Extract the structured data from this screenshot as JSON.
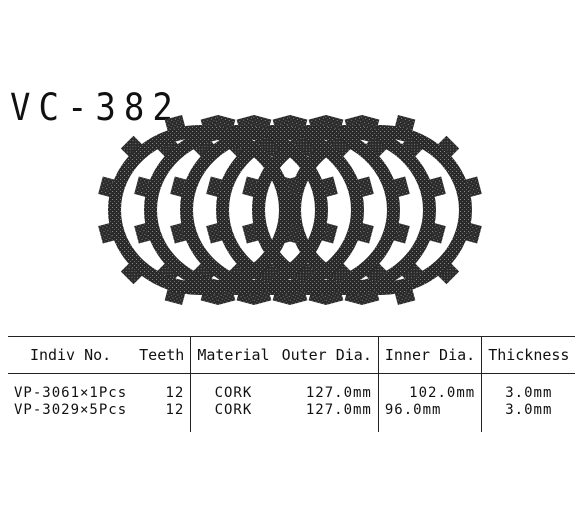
{
  "title": "VC-382",
  "image": {
    "icon": "clutch-plates-icon",
    "plate_count": 6,
    "teeth_per_plate": 12,
    "color": "#2a2a2a"
  },
  "table": {
    "headers": [
      "Indiv No.",
      "Teeth",
      "Material",
      "Outer Dia.",
      "Inner Dia.",
      "Thickness"
    ],
    "rows": [
      [
        "VP-3061×1Pcs",
        "12",
        "CORK",
        "127.0mm",
        "102.0mm",
        "3.0mm"
      ],
      [
        "VP-3029×5Pcs",
        "12",
        "CORK",
        "127.0mm",
        "96.0mm",
        "3.0mm"
      ]
    ]
  }
}
